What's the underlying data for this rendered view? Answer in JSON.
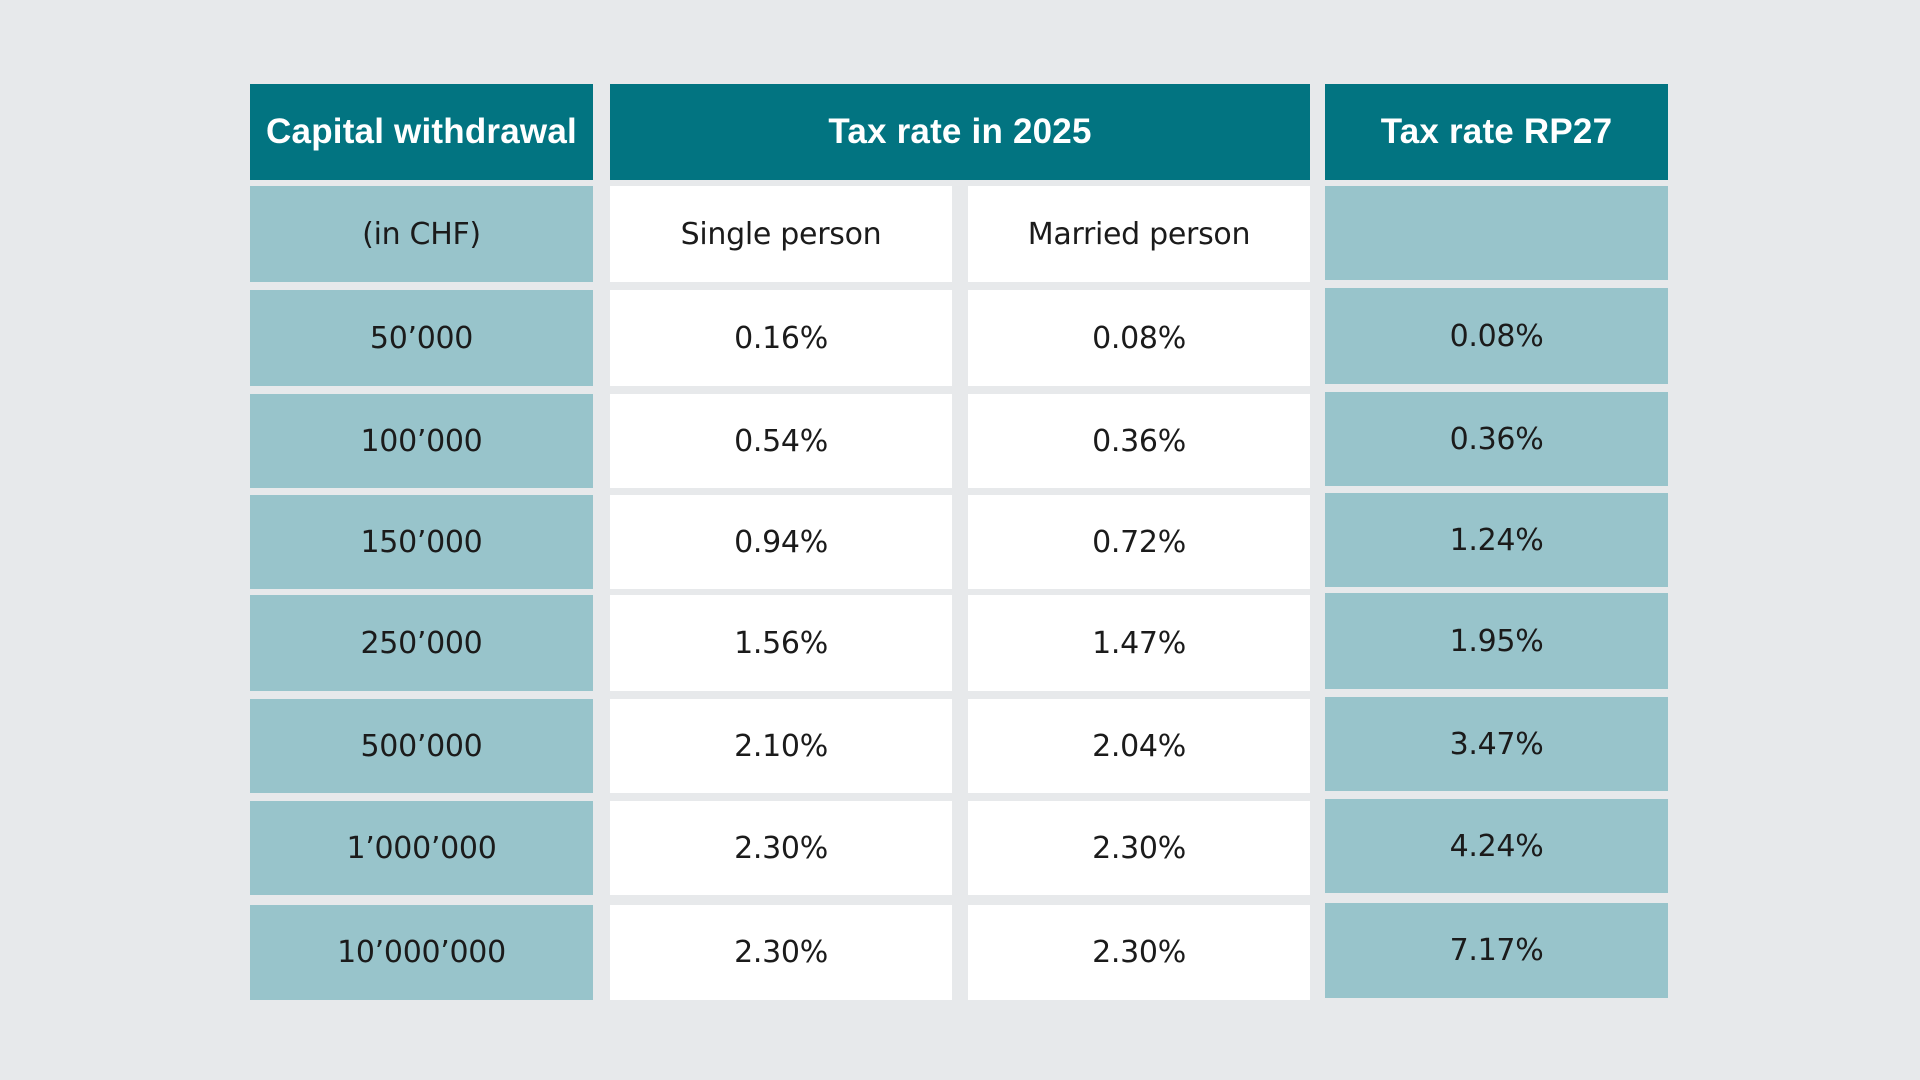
{
  "colors": {
    "background": "#e7e9eb",
    "header": "#027481",
    "teal_cell": "#98c4cb",
    "white_cell": "#ffffff"
  },
  "table": {
    "headers": {
      "capital_withdrawal": "Capital withdrawal",
      "tax_rate_2025": "Tax rate in 2025",
      "tax_rate_rp27": "Tax rate RP27"
    },
    "subheaders": {
      "unit": "(in CHF)",
      "single": "Single person",
      "married": "Married person",
      "rp27": ""
    },
    "rows": [
      {
        "amount": "50’000",
        "single": "0.16%",
        "married": "0.08%",
        "rp27": "0.08%"
      },
      {
        "amount": "100’000",
        "single": "0.54%",
        "married": "0.36%",
        "rp27": "0.36%"
      },
      {
        "amount": "150’000",
        "single": "0.94%",
        "married": "0.72%",
        "rp27": "1.24%"
      },
      {
        "amount": "250’000",
        "single": "1.56%",
        "married": "1.47%",
        "rp27": "1.95%"
      },
      {
        "amount": "500’000",
        "single": "2.10%",
        "married": "2.04%",
        "rp27": "3.47%"
      },
      {
        "amount": "1’000’000",
        "single": "2.30%",
        "married": "2.30%",
        "rp27": "4.24%"
      },
      {
        "amount": "10’000’000",
        "single": "2.30%",
        "married": "2.30%",
        "rp27": "7.17%"
      }
    ]
  }
}
